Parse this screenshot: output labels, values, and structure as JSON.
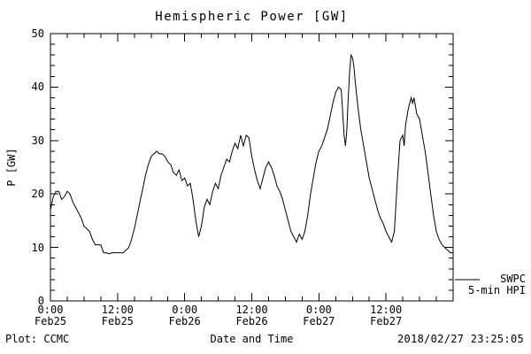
{
  "title": "Hemispheric Power [GW]",
  "y_axis": {
    "label": "P [GW]",
    "tick_values": [
      0,
      10,
      20,
      30,
      40,
      50
    ],
    "tick_labels": [
      "0",
      "10",
      "20",
      "30",
      "40",
      "50"
    ]
  },
  "x_axis": {
    "label": "Date and Time",
    "ticks": [
      {
        "hour": 0,
        "time": "0:00",
        "date": "Feb25"
      },
      {
        "hour": 12,
        "time": "12:00",
        "date": "Feb25"
      },
      {
        "hour": 24,
        "time": "0:00",
        "date": "Feb26"
      },
      {
        "hour": 36,
        "time": "12:00",
        "date": "Feb26"
      },
      {
        "hour": 48,
        "time": "0:00",
        "date": "Feb27"
      },
      {
        "hour": 60,
        "time": "12:00",
        "date": "Feb27"
      }
    ]
  },
  "legend": {
    "source": "SWPC",
    "series": "5-min HPI"
  },
  "footer": {
    "plot_credit": "Plot: CCMC",
    "timestamp": "2018/02/27 23:25:05"
  },
  "colors": {
    "line": "#000000",
    "axis": "#000000",
    "background": "#ffffff"
  },
  "chart_data": {
    "type": "line",
    "title": "Hemispheric Power [GW]",
    "xlabel": "Date and Time",
    "ylabel": "P [GW]",
    "ylim": [
      0,
      50
    ],
    "xlim_hours": [
      0,
      72
    ],
    "x_unit": "hours since Feb25 0:00",
    "grid": false,
    "legend_position": "right-outside",
    "series": [
      {
        "name": "SWPC 5-min HPI",
        "points": [
          [
            0,
            17
          ],
          [
            0.5,
            19.5
          ],
          [
            1,
            20.5
          ],
          [
            1.5,
            20.5
          ],
          [
            2,
            19
          ],
          [
            2.5,
            19.5
          ],
          [
            3,
            20.5
          ],
          [
            3.5,
            20
          ],
          [
            4,
            18.5
          ],
          [
            4.5,
            17.5
          ],
          [
            5,
            16.5
          ],
          [
            5.5,
            15.5
          ],
          [
            6,
            14
          ],
          [
            6.5,
            13.5
          ],
          [
            7,
            13
          ],
          [
            7.5,
            11.5
          ],
          [
            8,
            10.5
          ],
          [
            8.5,
            10.5
          ],
          [
            9,
            10.5
          ],
          [
            9.5,
            9
          ],
          [
            10,
            9
          ],
          [
            10.5,
            8.8
          ],
          [
            11,
            9
          ],
          [
            11.5,
            9
          ],
          [
            12,
            9
          ],
          [
            12.5,
            9
          ],
          [
            13,
            9
          ],
          [
            13.5,
            9.5
          ],
          [
            14,
            10
          ],
          [
            14.5,
            11.5
          ],
          [
            15,
            13.5
          ],
          [
            15.5,
            16
          ],
          [
            16,
            18.5
          ],
          [
            16.5,
            21
          ],
          [
            17,
            23.5
          ],
          [
            17.5,
            25.5
          ],
          [
            18,
            27
          ],
          [
            18.5,
            27.5
          ],
          [
            19,
            28
          ],
          [
            19.5,
            27.5
          ],
          [
            20,
            27.5
          ],
          [
            20.5,
            27
          ],
          [
            21,
            26
          ],
          [
            21.5,
            25.5
          ],
          [
            22,
            24
          ],
          [
            22.5,
            23.5
          ],
          [
            23,
            24.5
          ],
          [
            23.5,
            22.5
          ],
          [
            24,
            23
          ],
          [
            24.5,
            21.5
          ],
          [
            25,
            22
          ],
          [
            25.5,
            19
          ],
          [
            26,
            15
          ],
          [
            26.5,
            12
          ],
          [
            27,
            14
          ],
          [
            27.5,
            17.5
          ],
          [
            28,
            19
          ],
          [
            28.5,
            18
          ],
          [
            29,
            20.5
          ],
          [
            29.5,
            22
          ],
          [
            30,
            21
          ],
          [
            30.5,
            23.5
          ],
          [
            31,
            25
          ],
          [
            31.5,
            26.5
          ],
          [
            32,
            26
          ],
          [
            32.5,
            28
          ],
          [
            33,
            29.5
          ],
          [
            33.5,
            28.5
          ],
          [
            34,
            31
          ],
          [
            34.5,
            29
          ],
          [
            35,
            31
          ],
          [
            35.5,
            30.5
          ],
          [
            36,
            27
          ],
          [
            36.5,
            24.5
          ],
          [
            37,
            22.5
          ],
          [
            37.5,
            21
          ],
          [
            38,
            23
          ],
          [
            38.5,
            25
          ],
          [
            39,
            26
          ],
          [
            39.5,
            25
          ],
          [
            40,
            23.5
          ],
          [
            40.5,
            21.5
          ],
          [
            41,
            20.5
          ],
          [
            41.5,
            19
          ],
          [
            42,
            17
          ],
          [
            42.5,
            15
          ],
          [
            43,
            13
          ],
          [
            43.5,
            12
          ],
          [
            44,
            11
          ],
          [
            44.5,
            12.5
          ],
          [
            45,
            11.5
          ],
          [
            45.5,
            13
          ],
          [
            46,
            16
          ],
          [
            46.5,
            20
          ],
          [
            47,
            23
          ],
          [
            47.5,
            26
          ],
          [
            48,
            28
          ],
          [
            48.5,
            29
          ],
          [
            49,
            30.5
          ],
          [
            49.5,
            32
          ],
          [
            50,
            34.5
          ],
          [
            50.5,
            37
          ],
          [
            51,
            39
          ],
          [
            51.5,
            40
          ],
          [
            52,
            39.5
          ],
          [
            52.5,
            31
          ],
          [
            52.75,
            29
          ],
          [
            53,
            32
          ],
          [
            53.25,
            38
          ],
          [
            53.5,
            43
          ],
          [
            53.75,
            46
          ],
          [
            54,
            45.5
          ],
          [
            54.25,
            44
          ],
          [
            54.5,
            41
          ],
          [
            55,
            36
          ],
          [
            55.5,
            32
          ],
          [
            56,
            29
          ],
          [
            56.5,
            26
          ],
          [
            57,
            23
          ],
          [
            57.5,
            21
          ],
          [
            58,
            19
          ],
          [
            58.5,
            17
          ],
          [
            59,
            15.5
          ],
          [
            59.5,
            14.5
          ],
          [
            60,
            13
          ],
          [
            60.5,
            12
          ],
          [
            61,
            11
          ],
          [
            61.5,
            13
          ],
          [
            62,
            22
          ],
          [
            62.5,
            30
          ],
          [
            63,
            31
          ],
          [
            63.25,
            29
          ],
          [
            63.5,
            33
          ],
          [
            64,
            36
          ],
          [
            64.5,
            38
          ],
          [
            64.75,
            37
          ],
          [
            65,
            38
          ],
          [
            65.5,
            35
          ],
          [
            66,
            34
          ],
          [
            66.5,
            31
          ],
          [
            67,
            28
          ],
          [
            67.5,
            24
          ],
          [
            68,
            20
          ],
          [
            68.5,
            16
          ],
          [
            69,
            13
          ],
          [
            69.5,
            11.5
          ],
          [
            70,
            10.5
          ],
          [
            70.5,
            10
          ],
          [
            71,
            9.5
          ],
          [
            71.5,
            9
          ],
          [
            72,
            9
          ]
        ]
      }
    ]
  }
}
